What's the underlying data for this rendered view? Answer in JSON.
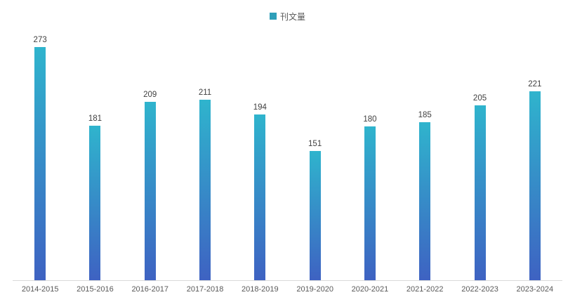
{
  "chart_data": {
    "type": "bar",
    "title": "",
    "legend": "刊文量",
    "legend_position": "top-center",
    "categories": [
      "2014-2015",
      "2015-2016",
      "2016-2017",
      "2017-2018",
      "2018-2019",
      "2019-2020",
      "2020-2021",
      "2021-2022",
      "2022-2023",
      "2023-2024"
    ],
    "values": [
      273,
      181,
      209,
      211,
      194,
      151,
      180,
      185,
      205,
      221
    ],
    "ylim": [
      0,
      273
    ],
    "grid": false,
    "data_labels": true
  },
  "colors": {
    "bar_top": "#2fb4cd",
    "bar_bottom": "#3e62c2",
    "legend_marker": "#2e9fb9",
    "axis_line": "#d9d9d9",
    "label_text": "#404040",
    "axis_text": "#595959"
  }
}
